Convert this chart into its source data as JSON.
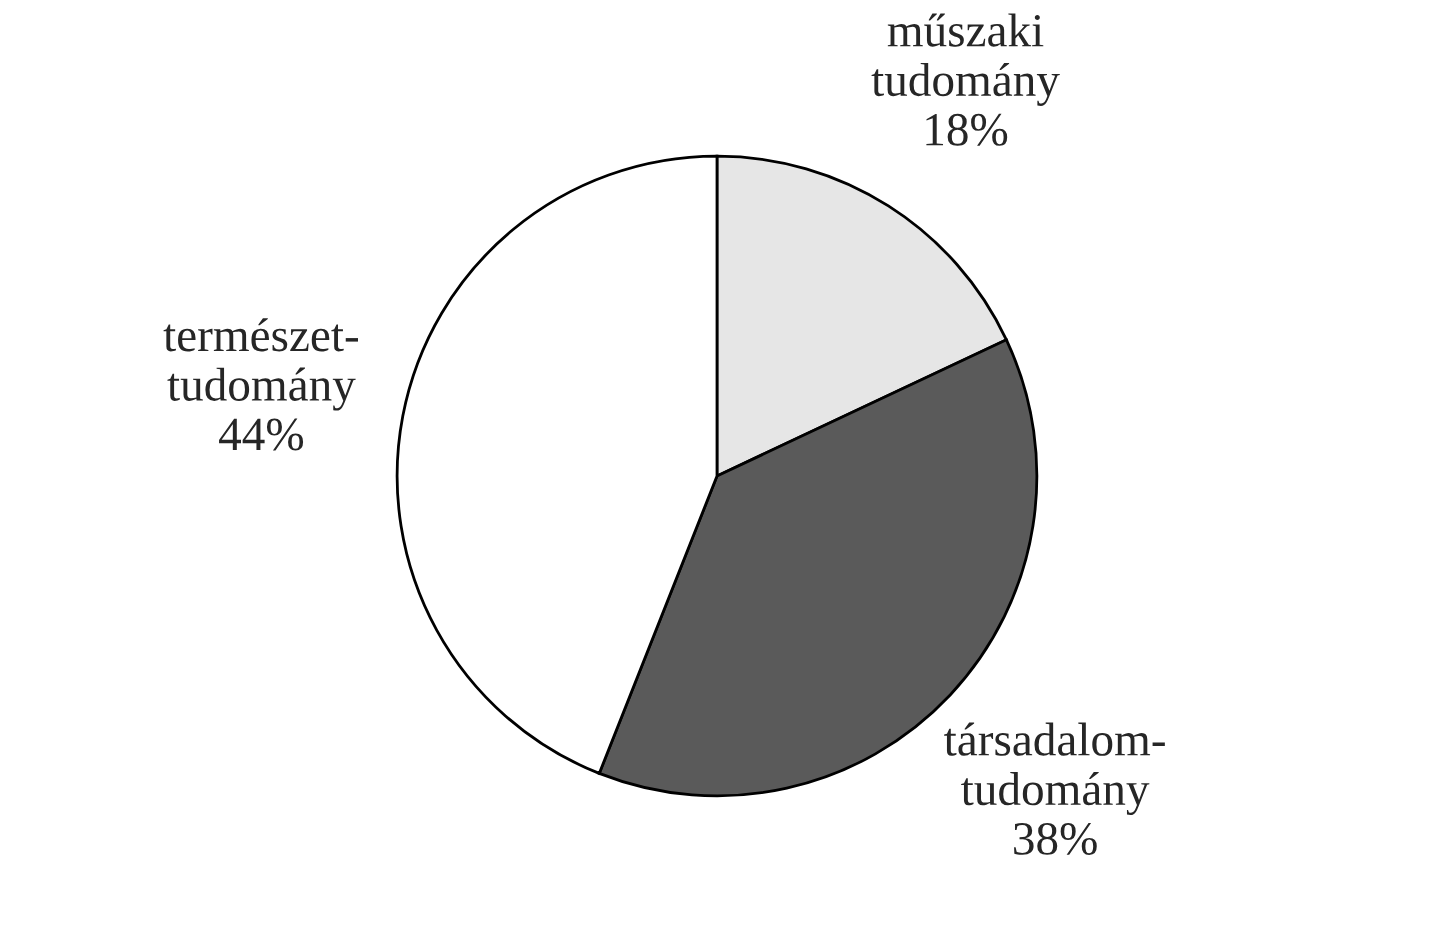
{
  "chart_data": {
    "type": "pie",
    "categories": [
      "műszaki\ntudomány",
      "társadalom-\ntudomány",
      "természet-\ntudomány"
    ],
    "values": [
      18,
      38,
      44
    ],
    "value_labels": [
      "18%",
      "38%",
      "44%"
    ],
    "colors": [
      "#e6e6e6",
      "#5a5a5a",
      "#ffffff"
    ],
    "legend": false
  }
}
